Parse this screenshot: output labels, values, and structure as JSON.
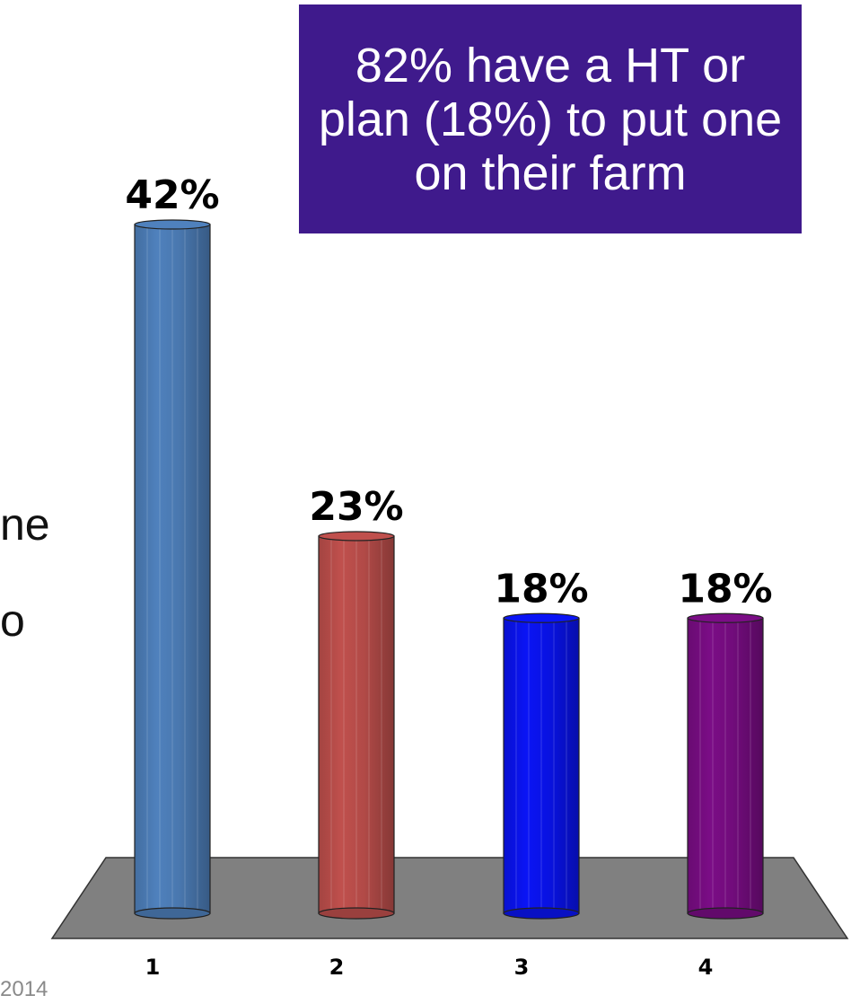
{
  "callout": {
    "text": "82% have a HT or plan (18%) to put one on their farm"
  },
  "side_text": {
    "line1": "ne",
    "line2": "o"
  },
  "footer": {
    "year": "2014"
  },
  "colors": {
    "bar1": "#4f81bd",
    "bar2": "#c0504d",
    "bar3": "#0a14f5",
    "bar4": "#7b0d86",
    "floor": "#808080",
    "callout_bg": "#3f1a8c"
  },
  "chart_data": {
    "type": "bar",
    "categories": [
      "1",
      "2",
      "3",
      "4"
    ],
    "values": [
      42,
      23,
      18,
      18
    ],
    "value_labels": [
      "42%",
      "23%",
      "18%",
      "18%"
    ],
    "title": "",
    "xlabel": "",
    "ylabel": "",
    "ylim": [
      0,
      42
    ],
    "grid": false,
    "style": "3d-cylinder"
  }
}
